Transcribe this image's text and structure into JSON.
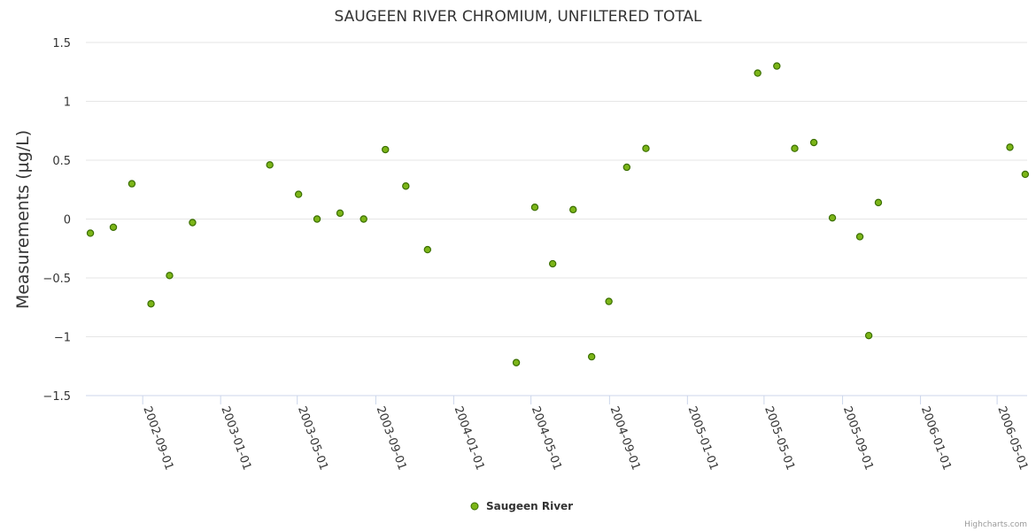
{
  "chart_data": {
    "type": "scatter",
    "title": "SAUGEEN RIVER CHROMIUM, UNFILTERED TOTAL",
    "xlabel": "",
    "ylabel": "Measurements (µg/L)",
    "ylim": [
      -1.5,
      1.5
    ],
    "yticks": [
      1.5,
      1,
      0.5,
      0,
      -0.5,
      -1,
      -1.5
    ],
    "ytick_labels": [
      "1.5",
      "1",
      "0.5",
      "0",
      "−0.5",
      "−1",
      "−1.5"
    ],
    "xlim": [
      "2002-06-04",
      "2006-06-17"
    ],
    "xticks": [
      "2002-09-01",
      "2003-01-01",
      "2003-05-01",
      "2003-09-01",
      "2004-01-01",
      "2004-05-01",
      "2004-09-01",
      "2005-01-01",
      "2005-05-01",
      "2005-09-01",
      "2006-01-01",
      "2006-05-01"
    ],
    "grid": true,
    "legend_position": "bottom-center",
    "series": [
      {
        "name": "Saugeen River",
        "color": "#7cb518",
        "points": [
          {
            "x": "2002-06-11",
            "y": -0.12
          },
          {
            "x": "2002-07-17",
            "y": -0.07
          },
          {
            "x": "2002-08-15",
            "y": 0.3
          },
          {
            "x": "2002-09-14",
            "y": -0.72
          },
          {
            "x": "2002-10-13",
            "y": -0.48
          },
          {
            "x": "2002-11-18",
            "y": -0.03
          },
          {
            "x": "2003-03-19",
            "y": 0.46
          },
          {
            "x": "2003-05-03",
            "y": 0.21
          },
          {
            "x": "2003-06-01",
            "y": 0.0
          },
          {
            "x": "2003-07-07",
            "y": 0.05
          },
          {
            "x": "2003-08-13",
            "y": 0.0
          },
          {
            "x": "2003-09-16",
            "y": 0.59
          },
          {
            "x": "2003-10-18",
            "y": 0.28
          },
          {
            "x": "2003-11-21",
            "y": -0.26
          },
          {
            "x": "2004-04-08",
            "y": -1.22
          },
          {
            "x": "2004-05-07",
            "y": 0.1
          },
          {
            "x": "2004-06-04",
            "y": -0.38
          },
          {
            "x": "2004-07-06",
            "y": 0.08
          },
          {
            "x": "2004-08-04",
            "y": -1.17
          },
          {
            "x": "2004-08-31",
            "y": -0.7
          },
          {
            "x": "2004-09-28",
            "y": 0.44
          },
          {
            "x": "2004-10-28",
            "y": 0.6
          },
          {
            "x": "2005-04-21",
            "y": 1.24
          },
          {
            "x": "2005-05-21",
            "y": 1.3
          },
          {
            "x": "2005-06-18",
            "y": 0.6
          },
          {
            "x": "2005-07-18",
            "y": 0.65
          },
          {
            "x": "2005-08-16",
            "y": 0.01
          },
          {
            "x": "2005-09-28",
            "y": -0.15
          },
          {
            "x": "2005-10-12",
            "y": -0.99
          },
          {
            "x": "2005-10-27",
            "y": 0.14
          },
          {
            "x": "2006-05-21",
            "y": 0.61
          },
          {
            "x": "2006-06-14",
            "y": 0.38
          }
        ]
      }
    ]
  },
  "credits": "Highcharts.com"
}
